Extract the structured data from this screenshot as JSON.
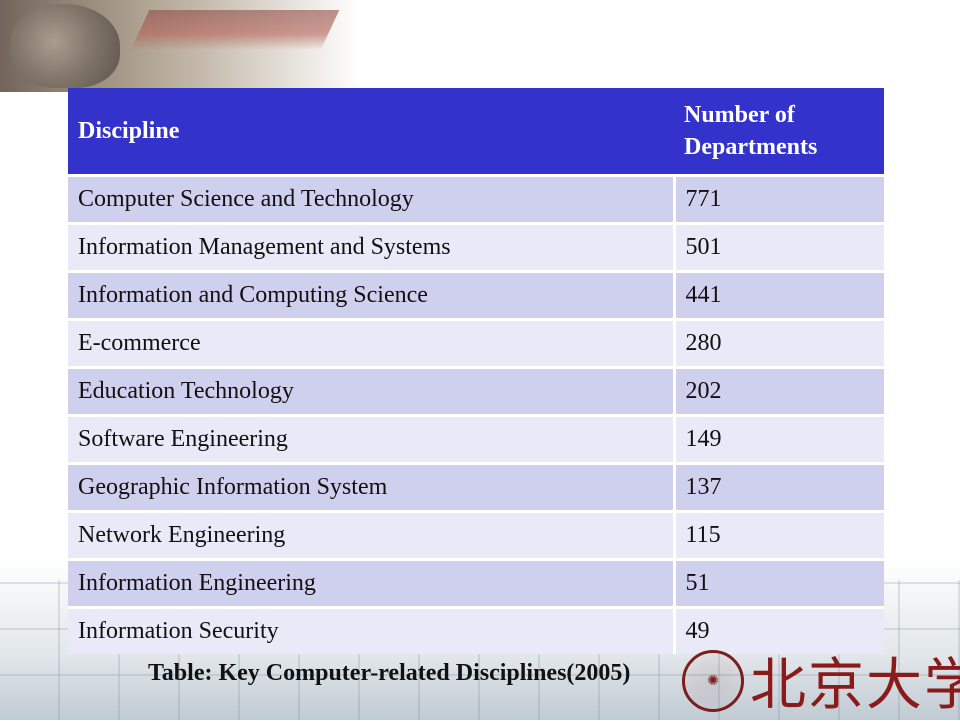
{
  "table": {
    "headers": [
      "Discipline",
      "Number of Departments"
    ],
    "rows": [
      [
        "Computer Science and Technology",
        "771"
      ],
      [
        "Information Management and Systems",
        "501"
      ],
      [
        "Information and Computing Science",
        "441"
      ],
      [
        "E-commerce",
        "280"
      ],
      [
        "Education Technology",
        "202"
      ],
      [
        "Software Engineering",
        "149"
      ],
      [
        "Geographic Information System",
        "137"
      ],
      [
        "Network Engineering",
        "115"
      ],
      [
        "Information Engineering",
        "51"
      ],
      [
        "Information Security",
        "49"
      ]
    ]
  },
  "caption": "Table:  Key Computer-related Disciplines(2005)",
  "logo": {
    "text": "北京大学",
    "icon": "peking-university-seal-icon"
  },
  "colors": {
    "header_bg": "#3333cc",
    "row_dark": "#cfd0ee",
    "row_light": "#e9e9f7",
    "logo_red": "#8b1a1a"
  }
}
